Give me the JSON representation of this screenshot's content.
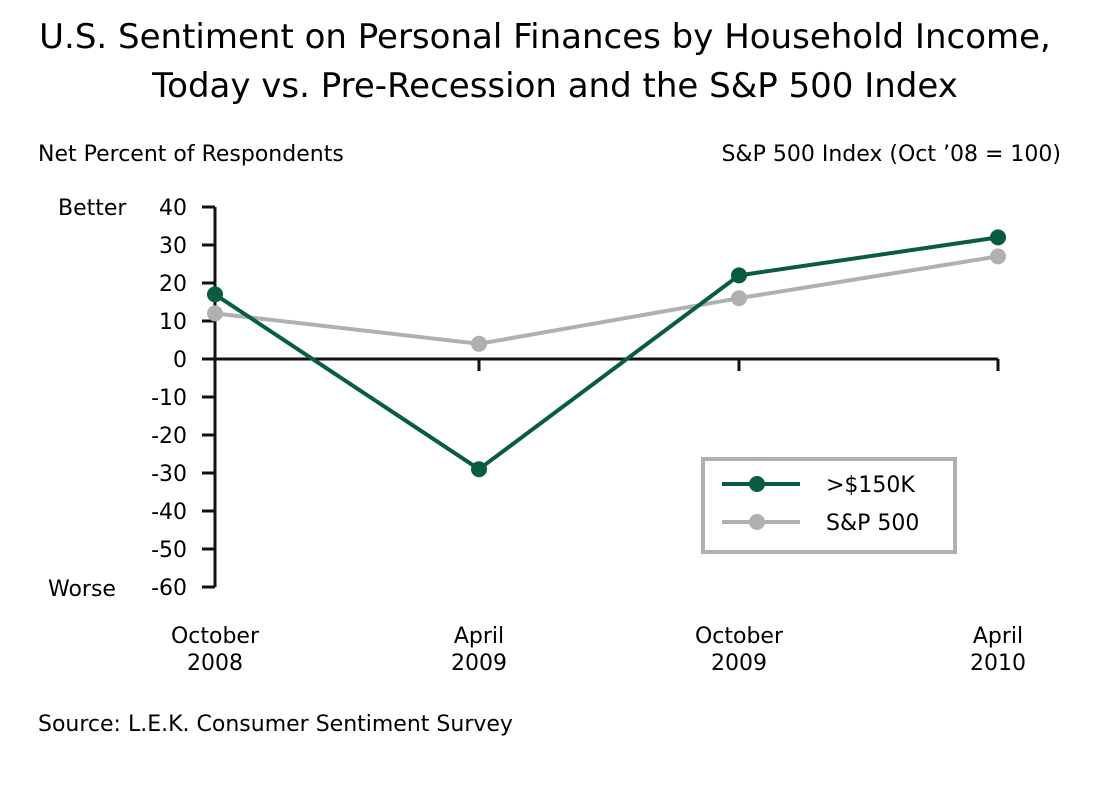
{
  "chart_data": {
    "type": "line",
    "title_lines": [
      "U.S. Sentiment on Personal Finances by Household Income,",
      "Today vs. Pre-Recession and the S&P 500 Index"
    ],
    "ylabel_left": "Net Percent of Respondents",
    "ylabel_right": "S&P 500 Index (Oct ’08 = 100)",
    "y_top_label": "Better",
    "y_bottom_label": "Worse",
    "ylim": [
      -60,
      40
    ],
    "yticks": [
      "40",
      "30",
      "20",
      "10",
      "0",
      "-10",
      "-20",
      "-30",
      "-40",
      "-50",
      "-60"
    ],
    "categories": [
      [
        "October",
        "2008"
      ],
      [
        "April",
        "2009"
      ],
      [
        "October",
        "2009"
      ],
      [
        "April",
        "2010"
      ]
    ],
    "series": [
      {
        "name": ">$150K",
        "values": [
          17,
          -29,
          22,
          32
        ],
        "color": "#0a5c40"
      },
      {
        "name": "S&P 500",
        "values": [
          12,
          4,
          16,
          27
        ],
        "color": "#b0b0b2"
      }
    ],
    "legend_position": "lower-right",
    "grid": false,
    "source": "Source: L.E.K. Consumer Sentiment Survey"
  }
}
